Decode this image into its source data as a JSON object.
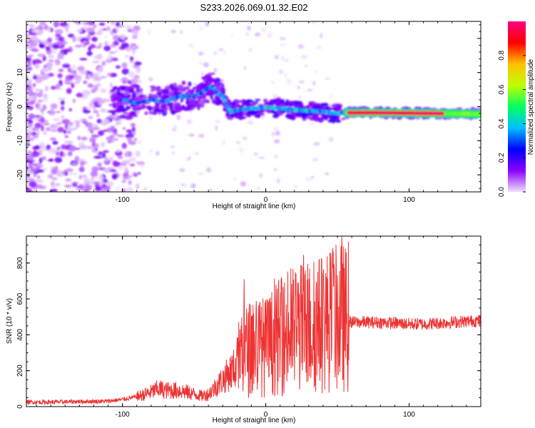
{
  "title": "S233.2026.069.01.32.E02",
  "chart_data": [
    {
      "type": "heatmap",
      "title": "S233.2026.069.01.32.E02",
      "xlabel": "Height of straight line (km)",
      "ylabel": "Frequency (Hz)",
      "xlim": [
        -167,
        150
      ],
      "ylim": [
        -25,
        25
      ],
      "xticks": [
        "-100",
        "0",
        "100"
      ],
      "yticks": [
        "-20",
        "-10",
        "0",
        "10",
        "20"
      ],
      "colorbar": {
        "label": "Normalized spectral amplitude",
        "range": [
          0.0,
          1.0
        ],
        "ticks": [
          "0.0",
          "0.2",
          "0.4",
          "0.6",
          "0.8"
        ],
        "colors": [
          "#f0e0ff",
          "#8a00ff",
          "#0000ff",
          "#00c0ff",
          "#00ff60",
          "#c0ff00",
          "#ffc000",
          "#ff0000",
          "#ff0080"
        ]
      },
      "ridge": {
        "x": [
          -100,
          -90,
          -80,
          -70,
          -60,
          -50,
          -45,
          -40,
          -37,
          -34,
          -30,
          -27,
          -24,
          -20,
          -10,
          0,
          10,
          20,
          30,
          40,
          50,
          55,
          60,
          80,
          100,
          120,
          140,
          150
        ],
        "y": [
          2,
          1,
          2,
          1.5,
          3,
          3,
          4,
          5.5,
          6,
          4,
          3,
          0,
          -1.5,
          -1,
          -0.5,
          -0.2,
          -0.5,
          -1,
          -1.2,
          -1.5,
          -2,
          -1.8,
          -1.8,
          -1.8,
          -1.9,
          -2,
          -2.1,
          -2.2
        ]
      }
    },
    {
      "type": "line",
      "xlabel": "Height of straight line (km)",
      "ylabel": "SNR (10 * v/v)",
      "xlim": [
        -167,
        150
      ],
      "ylim": [
        0,
        950
      ],
      "xticks": [
        "-100",
        "0",
        "100"
      ],
      "yticks": [
        "0",
        "200",
        "400",
        "600",
        "800"
      ],
      "series": [
        {
          "name": "SNR",
          "color": "#ee3333",
          "x": [
            -167,
            -150,
            -130,
            -110,
            -100,
            -90,
            -80,
            -75,
            -70,
            -60,
            -50,
            -45,
            -40,
            -35,
            -30,
            -25,
            -20,
            -17,
            -15,
            -10,
            -5,
            0,
            5,
            10,
            15,
            20,
            25,
            30,
            35,
            40,
            45,
            50,
            53,
            57,
            60,
            70,
            80,
            90,
            100,
            110,
            120,
            130,
            140,
            150
          ],
          "y": [
            25,
            25,
            28,
            30,
            40,
            55,
            80,
            100,
            90,
            90,
            70,
            60,
            70,
            110,
            150,
            190,
            230,
            320,
            300,
            330,
            340,
            330,
            360,
            390,
            400,
            430,
            440,
            440,
            450,
            470,
            480,
            490,
            500,
            480,
            470,
            470,
            470,
            465,
            460,
            460,
            465,
            470,
            475,
            480
          ]
        }
      ]
    }
  ]
}
